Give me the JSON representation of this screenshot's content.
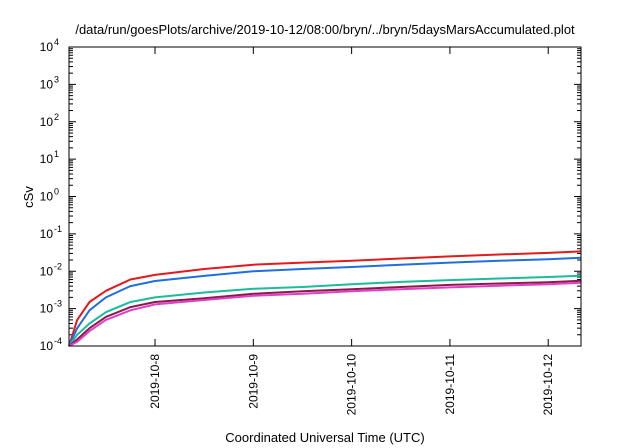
{
  "chart_data": {
    "type": "line",
    "title": "/data/run/goesPlots/archive/2019-10-12/08:00/bryn/../bryn/5daysMarsAccumulated.plot",
    "xlabel": "Coordinated Universal Time (UTC)",
    "ylabel": "cSv",
    "yscale": "log",
    "ylim": [
      0.0001,
      10000
    ],
    "xlim": [
      "2019-10-07T03:00",
      "2019-10-12T08:00"
    ],
    "y_ticks": [
      {
        "base": "10",
        "exp": "-4",
        "value": 0.0001
      },
      {
        "base": "10",
        "exp": "-3",
        "value": 0.001
      },
      {
        "base": "10",
        "exp": "-2",
        "value": 0.01
      },
      {
        "base": "10",
        "exp": "-1",
        "value": 0.1
      },
      {
        "base": "10",
        "exp": "0",
        "value": 1
      },
      {
        "base": "10",
        "exp": "1",
        "value": 10
      },
      {
        "base": "10",
        "exp": "2",
        "value": 100
      },
      {
        "base": "10",
        "exp": "3",
        "value": 1000
      },
      {
        "base": "10",
        "exp": "4",
        "value": 10000
      }
    ],
    "x_ticks": [
      "2019-10-8",
      "2019-10-9",
      "2019-10-10",
      "2019-10-11",
      "2019-10-12"
    ],
    "grid": false,
    "legend": "none",
    "series": [
      {
        "color": "#e31a1c",
        "x": [
          "2019-10-07T03:00",
          "2019-10-07T05:00",
          "2019-10-07T08:00",
          "2019-10-07T12:00",
          "2019-10-07T18:00",
          "2019-10-08T00:00",
          "2019-10-08T12:00",
          "2019-10-09T00:00",
          "2019-10-09T12:00",
          "2019-10-10T00:00",
          "2019-10-10T12:00",
          "2019-10-11T00:00",
          "2019-10-11T12:00",
          "2019-10-12T00:00",
          "2019-10-12T08:00"
        ],
        "y": [
          0.0001,
          0.0005,
          0.0015,
          0.003,
          0.006,
          0.008,
          0.0115,
          0.015,
          0.017,
          0.019,
          0.022,
          0.025,
          0.028,
          0.031,
          0.034
        ]
      },
      {
        "color": "#1f6fe0",
        "x": [
          "2019-10-07T03:00",
          "2019-10-07T05:00",
          "2019-10-07T08:00",
          "2019-10-07T12:00",
          "2019-10-07T18:00",
          "2019-10-08T00:00",
          "2019-10-08T12:00",
          "2019-10-09T00:00",
          "2019-10-09T12:00",
          "2019-10-10T00:00",
          "2019-10-10T12:00",
          "2019-10-11T00:00",
          "2019-10-11T12:00",
          "2019-10-12T00:00",
          "2019-10-12T08:00"
        ],
        "y": [
          0.0001,
          0.0003,
          0.0009,
          0.002,
          0.004,
          0.0055,
          0.0075,
          0.01,
          0.0115,
          0.013,
          0.015,
          0.017,
          0.019,
          0.021,
          0.023
        ]
      },
      {
        "color": "#1abc9c",
        "x": [
          "2019-10-07T03:00",
          "2019-10-07T05:00",
          "2019-10-07T08:00",
          "2019-10-07T12:00",
          "2019-10-07T18:00",
          "2019-10-08T00:00",
          "2019-10-08T12:00",
          "2019-10-09T00:00",
          "2019-10-09T12:00",
          "2019-10-10T00:00",
          "2019-10-10T12:00",
          "2019-10-11T00:00",
          "2019-10-11T12:00",
          "2019-10-12T00:00",
          "2019-10-12T08:00"
        ],
        "y": [
          0.0001,
          0.0002,
          0.0004,
          0.0008,
          0.0015,
          0.002,
          0.0027,
          0.0034,
          0.0038,
          0.0045,
          0.0052,
          0.0058,
          0.0064,
          0.007,
          0.0076
        ]
      },
      {
        "color": "#8b1a4a",
        "x": [
          "2019-10-07T03:00",
          "2019-10-07T05:00",
          "2019-10-07T08:00",
          "2019-10-07T12:00",
          "2019-10-07T18:00",
          "2019-10-08T00:00",
          "2019-10-08T12:00",
          "2019-10-09T00:00",
          "2019-10-09T12:00",
          "2019-10-10T00:00",
          "2019-10-10T12:00",
          "2019-10-11T00:00",
          "2019-10-11T12:00",
          "2019-10-12T00:00",
          "2019-10-12T08:00"
        ],
        "y": [
          0.0001,
          0.00015,
          0.0003,
          0.0006,
          0.0011,
          0.0015,
          0.0019,
          0.0025,
          0.0029,
          0.0033,
          0.0038,
          0.0043,
          0.0047,
          0.0051,
          0.0056
        ]
      },
      {
        "color": "#e040c8",
        "x": [
          "2019-10-07T03:00",
          "2019-10-07T05:00",
          "2019-10-07T08:00",
          "2019-10-07T12:00",
          "2019-10-07T18:00",
          "2019-10-08T00:00",
          "2019-10-08T12:00",
          "2019-10-09T00:00",
          "2019-10-09T12:00",
          "2019-10-10T00:00",
          "2019-10-10T12:00",
          "2019-10-11T00:00",
          "2019-10-11T12:00",
          "2019-10-12T00:00",
          "2019-10-12T08:00"
        ],
        "y": [
          0.0001,
          0.00013,
          0.00025,
          0.0005,
          0.0009,
          0.0013,
          0.0017,
          0.0022,
          0.0025,
          0.0029,
          0.0033,
          0.0037,
          0.0041,
          0.0045,
          0.0049
        ]
      }
    ]
  }
}
